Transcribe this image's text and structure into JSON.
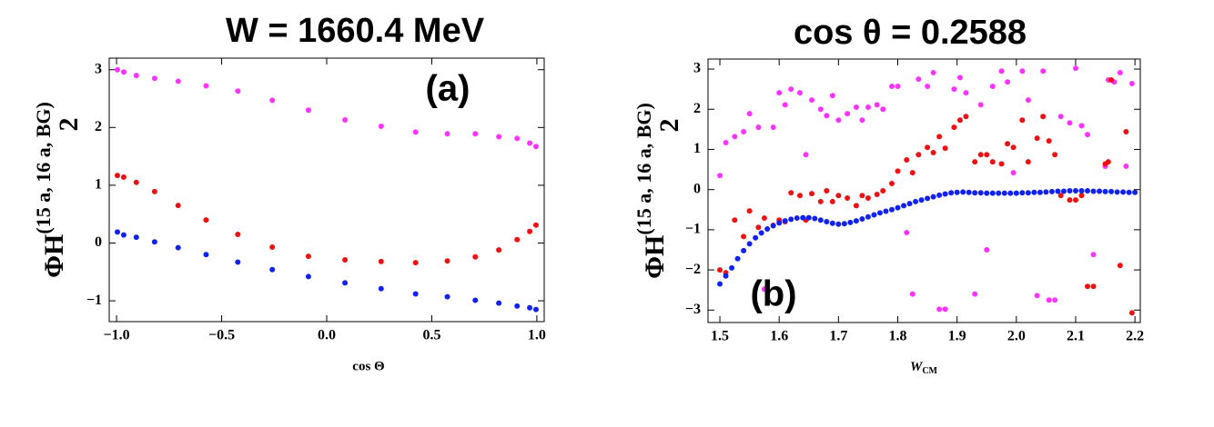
{
  "chart_data": [
    {
      "type": "scatter",
      "title": "W = 1660.4 MeV",
      "annotation": "(a)",
      "x_label": "cos Θ",
      "y_label": {
        "main": "ΦH",
        "sub": "2",
        "sup": "(15 a, 16 a, BG)"
      },
      "xlim": [
        -1.035,
        1.035
      ],
      "ylim": [
        -1.36,
        3.2
      ],
      "xticks": [
        {
          "value": -1,
          "label": "−1.0"
        },
        {
          "value": -0.5,
          "label": "−0.5"
        },
        {
          "value": 0,
          "label": "0.0"
        },
        0.5,
        {
          "value": 1,
          "label": "1.0"
        }
      ],
      "yticks": [
        {
          "value": -1,
          "label": "−1"
        },
        0,
        1,
        2,
        3
      ],
      "series": [
        {
          "color": "#ff33ff",
          "x": [
            -0.996,
            -0.966,
            -0.906,
            -0.819,
            -0.707,
            -0.574,
            -0.423,
            -0.259,
            -0.087,
            0.087,
            0.259,
            0.423,
            0.574,
            0.707,
            0.819,
            0.906,
            0.966,
            0.996
          ],
          "values": [
            3.0,
            2.96,
            2.9,
            2.85,
            2.8,
            2.72,
            2.63,
            2.47,
            2.3,
            2.13,
            2.02,
            1.92,
            1.89,
            1.89,
            1.84,
            1.81,
            1.73,
            1.67
          ]
        },
        {
          "color": "#ee1111",
          "x": [
            -0.996,
            -0.966,
            -0.906,
            -0.819,
            -0.707,
            -0.574,
            -0.423,
            -0.259,
            -0.087,
            0.087,
            0.259,
            0.423,
            0.574,
            0.707,
            0.819,
            0.906,
            0.966,
            0.996
          ],
          "values": [
            1.17,
            1.14,
            1.05,
            0.89,
            0.65,
            0.4,
            0.15,
            -0.07,
            -0.23,
            -0.29,
            -0.32,
            -0.34,
            -0.31,
            -0.24,
            -0.12,
            0.06,
            0.2,
            0.31
          ]
        },
        {
          "color": "#1122ee",
          "x": [
            -0.996,
            -0.966,
            -0.906,
            -0.819,
            -0.707,
            -0.574,
            -0.423,
            -0.259,
            -0.087,
            0.087,
            0.259,
            0.423,
            0.574,
            0.707,
            0.819,
            0.906,
            0.966,
            0.996
          ],
          "values": [
            0.19,
            0.14,
            0.1,
            0.02,
            -0.08,
            -0.2,
            -0.33,
            -0.46,
            -0.58,
            -0.69,
            -0.79,
            -0.88,
            -0.93,
            -0.99,
            -1.04,
            -1.09,
            -1.12,
            -1.15
          ]
        }
      ]
    },
    {
      "type": "scatter",
      "title": "cos θ = 0.2588",
      "annotation": "(b)",
      "x_label": {
        "main": "W",
        "sub": "CM"
      },
      "y_label": {
        "main": "ΦH",
        "sub": "2",
        "sup": "(15 a, 16 a, BG)"
      },
      "xlim": [
        1.48,
        2.209
      ],
      "ylim": [
        -3.31,
        3.25
      ],
      "xticks": [
        1.5,
        1.6,
        1.7,
        1.8,
        1.9,
        {
          "value": 2,
          "label": "2.0"
        },
        2.1,
        2.2
      ],
      "yticks": [
        {
          "value": -3,
          "label": "−3"
        },
        {
          "value": -2,
          "label": "−2"
        },
        {
          "value": -1,
          "label": "−1"
        },
        0,
        1,
        2,
        3
      ],
      "series": [
        {
          "color": "#ff33ff",
          "x": [
            1.5,
            1.51,
            1.525,
            1.54,
            1.55,
            1.565,
            1.575,
            1.59,
            1.6,
            1.61,
            1.62,
            1.635,
            1.645,
            1.655,
            1.67,
            1.68,
            1.69,
            1.7,
            1.715,
            1.73,
            1.74,
            1.75,
            1.765,
            1.775,
            1.79,
            1.8,
            1.815,
            1.825,
            1.835,
            1.85,
            1.86,
            1.87,
            1.88,
            1.895,
            1.905,
            1.915,
            1.93,
            1.94,
            1.95,
            1.96,
            1.975,
            1.985,
            1.995,
            2.01,
            2.02,
            2.035,
            2.045,
            2.055,
            2.065,
            2.075,
            2.09,
            2.1,
            2.11,
            2.12,
            2.13,
            2.15,
            2.155,
            2.165,
            2.175,
            2.185,
            2.195
          ],
          "values": [
            0.35,
            1.17,
            1.32,
            1.44,
            1.89,
            1.55,
            -2.48,
            1.55,
            2.41,
            2.11,
            2.5,
            2.41,
            0.87,
            2.23,
            2.0,
            1.84,
            2.34,
            1.73,
            1.89,
            2.05,
            1.73,
            2.05,
            2.11,
            2.0,
            2.57,
            2.57,
            -1.07,
            -2.6,
            2.75,
            2.57,
            2.91,
            -2.98,
            -2.98,
            2.5,
            2.79,
            2.41,
            -2.6,
            2.11,
            -1.5,
            2.57,
            2.95,
            2.68,
            0.42,
            2.95,
            2.23,
            -2.64,
            2.95,
            -2.75,
            -2.75,
            1.82,
            1.66,
            3.02,
            1.59,
            1.37,
            -1.62,
            0.58,
            2.73,
            2.68,
            2.91,
            0.58,
            2.64
          ]
        },
        {
          "color": "#ee1111",
          "x": [
            1.5,
            1.51,
            1.525,
            1.54,
            1.55,
            1.565,
            1.575,
            1.59,
            1.6,
            1.61,
            1.62,
            1.635,
            1.645,
            1.655,
            1.67,
            1.68,
            1.69,
            1.7,
            1.715,
            1.73,
            1.74,
            1.75,
            1.765,
            1.775,
            1.79,
            1.8,
            1.815,
            1.825,
            1.835,
            1.85,
            1.86,
            1.87,
            1.88,
            1.895,
            1.905,
            1.915,
            1.93,
            1.94,
            1.95,
            1.96,
            1.975,
            1.985,
            1.995,
            2.01,
            2.02,
            2.035,
            2.045,
            2.055,
            2.065,
            2.075,
            2.09,
            2.1,
            2.11,
            2.12,
            2.13,
            2.15,
            2.155,
            2.16,
            2.175,
            2.185,
            2.195
          ],
          "values": [
            -2.0,
            -2.07,
            -0.76,
            -1.17,
            -0.53,
            -0.94,
            -0.71,
            -0.89,
            -0.76,
            -0.8,
            -0.08,
            -0.15,
            -0.76,
            -0.1,
            -0.3,
            -0.03,
            -0.3,
            -0.15,
            -0.21,
            -0.4,
            -0.15,
            -0.21,
            -0.12,
            -0.03,
            0.15,
            0.46,
            0.74,
            0.42,
            0.87,
            1.05,
            0.92,
            1.32,
            1.03,
            1.55,
            1.73,
            1.82,
            0.69,
            0.87,
            0.87,
            0.69,
            0.64,
            1.14,
            1.05,
            1.73,
            0.69,
            1.28,
            1.82,
            1.21,
            0.87,
            -0.15,
            -0.26,
            -0.26,
            -0.15,
            -2.41,
            -2.41,
            0.64,
            0.69,
            2.73,
            -1.89,
            1.44,
            -3.07
          ]
        },
        {
          "color": "#1122ee",
          "x": [
            1.5,
            1.51,
            1.52,
            1.53,
            1.54,
            1.55,
            1.56,
            1.57,
            1.58,
            1.59,
            1.6,
            1.61,
            1.62,
            1.63,
            1.64,
            1.65,
            1.66,
            1.67,
            1.68,
            1.69,
            1.7,
            1.71,
            1.72,
            1.73,
            1.74,
            1.75,
            1.76,
            1.77,
            1.78,
            1.79,
            1.8,
            1.81,
            1.82,
            1.83,
            1.84,
            1.85,
            1.86,
            1.87,
            1.88,
            1.89,
            1.9,
            1.91,
            1.92,
            1.93,
            1.94,
            1.95,
            1.96,
            1.97,
            1.98,
            1.99,
            2.0,
            2.01,
            2.02,
            2.03,
            2.04,
            2.05,
            2.06,
            2.07,
            2.08,
            2.09,
            2.1,
            2.11,
            2.12,
            2.13,
            2.14,
            2.15,
            2.16,
            2.17,
            2.18,
            2.19,
            2.2
          ],
          "values": [
            -2.35,
            -2.15,
            -1.95,
            -1.72,
            -1.52,
            -1.35,
            -1.2,
            -1.08,
            -0.98,
            -0.9,
            -0.83,
            -0.78,
            -0.74,
            -0.71,
            -0.7,
            -0.7,
            -0.72,
            -0.76,
            -0.8,
            -0.84,
            -0.86,
            -0.85,
            -0.82,
            -0.78,
            -0.73,
            -0.68,
            -0.63,
            -0.58,
            -0.54,
            -0.5,
            -0.45,
            -0.4,
            -0.35,
            -0.3,
            -0.26,
            -0.22,
            -0.18,
            -0.14,
            -0.11,
            -0.08,
            -0.07,
            -0.06,
            -0.07,
            -0.08,
            -0.08,
            -0.09,
            -0.09,
            -0.09,
            -0.09,
            -0.09,
            -0.09,
            -0.08,
            -0.08,
            -0.07,
            -0.07,
            -0.06,
            -0.05,
            -0.04,
            -0.04,
            -0.03,
            -0.03,
            -0.03,
            -0.03,
            -0.04,
            -0.04,
            -0.05,
            -0.05,
            -0.06,
            -0.06,
            -0.07,
            -0.07
          ]
        }
      ]
    }
  ]
}
